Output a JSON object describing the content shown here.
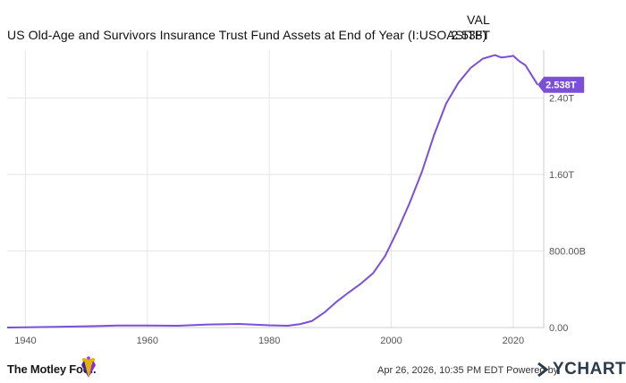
{
  "header": {
    "column_label": "VAL",
    "series_name": "US Old-Age and Survivors Insurance Trust Fund Assets at End of Year (I:USOASITF)",
    "series_value": "2.538T"
  },
  "chart_data": {
    "type": "line",
    "title": "",
    "xlabel": "",
    "ylabel": "",
    "xlim": [
      1937,
      2025
    ],
    "ylim": [
      0,
      2.9
    ],
    "x_ticks": [
      1940,
      1960,
      1980,
      2000,
      2020
    ],
    "y_ticks": [
      0,
      0.8,
      1.6,
      2.4
    ],
    "y_tick_labels": [
      "0.00",
      "800.00B",
      "1.60T",
      "2.40T"
    ],
    "grid": true,
    "series": [
      {
        "name": "US Old-Age and Survivors Insurance Trust Fund Assets at End of Year (I:USOASITF)",
        "color": "#7b4fd6",
        "x": [
          1937,
          1940,
          1945,
          1950,
          1955,
          1960,
          1965,
          1970,
          1975,
          1980,
          1983,
          1985,
          1987,
          1989,
          1991,
          1993,
          1995,
          1997,
          1999,
          2001,
          2003,
          2005,
          2007,
          2009,
          2011,
          2013,
          2015,
          2017,
          2018,
          2019,
          2020,
          2021,
          2022,
          2023,
          2024
        ],
        "y": [
          0.0,
          0.002,
          0.007,
          0.013,
          0.021,
          0.021,
          0.019,
          0.032,
          0.037,
          0.023,
          0.019,
          0.035,
          0.068,
          0.156,
          0.268,
          0.366,
          0.458,
          0.567,
          0.749,
          1.011,
          1.3,
          1.624,
          2.01,
          2.342,
          2.558,
          2.713,
          2.81,
          2.848,
          2.823,
          2.83,
          2.84,
          2.784,
          2.742,
          2.64,
          2.538
        ]
      }
    ],
    "last_value_label": "2.538T"
  },
  "footer": {
    "brand": "The Motley Fool.",
    "note": "Apr 26, 2026, 10:35 PM EDT Powered by",
    "provider": "YCHARTS"
  },
  "colors": {
    "line": "#7b4fd6",
    "grid": "#e6e6e6",
    "axis_text": "#555555",
    "badge_bg": "#7b4fd6",
    "badge_text": "#ffffff"
  }
}
